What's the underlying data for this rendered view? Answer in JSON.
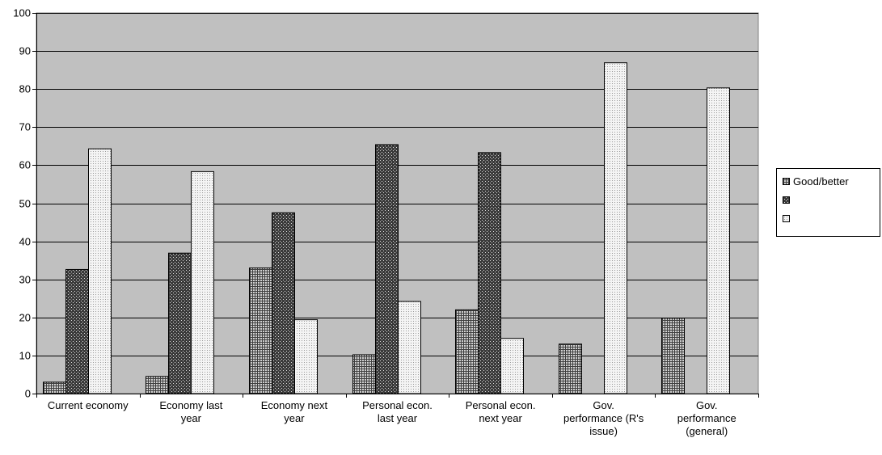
{
  "chart_data": {
    "type": "bar",
    "categories": [
      [
        "Current economy"
      ],
      [
        "Economy last",
        "year"
      ],
      [
        "Economy next",
        "year"
      ],
      [
        "Personal econ.",
        "last year"
      ],
      [
        "Personal econ.",
        "next year"
      ],
      [
        "Gov.",
        "performance (R's",
        "issue)"
      ],
      [
        "Gov.",
        "performance",
        "(general)"
      ]
    ],
    "series": [
      {
        "name": "Good/better",
        "values": [
          3,
          4.5,
          33,
          10.2,
          22,
          13,
          19.8
        ],
        "pattern": "grid"
      },
      {
        "values": [
          32.6,
          36.9,
          47.5,
          65.4,
          63.3,
          null,
          null
        ],
        "pattern": "diagonal"
      },
      {
        "values": [
          64.3,
          58.3,
          19.4,
          24.2,
          14.5,
          86.9,
          80.3
        ],
        "pattern": "dots"
      }
    ],
    "ylim": [
      0,
      100
    ],
    "yticks": [
      0,
      10,
      20,
      30,
      40,
      50,
      60,
      70,
      80,
      90,
      100
    ],
    "grid": true,
    "legend_position": "right",
    "colors": {
      "plot_background": "#c0c0c0",
      "gridline": "#000000",
      "bar_edge": "#000000"
    }
  }
}
